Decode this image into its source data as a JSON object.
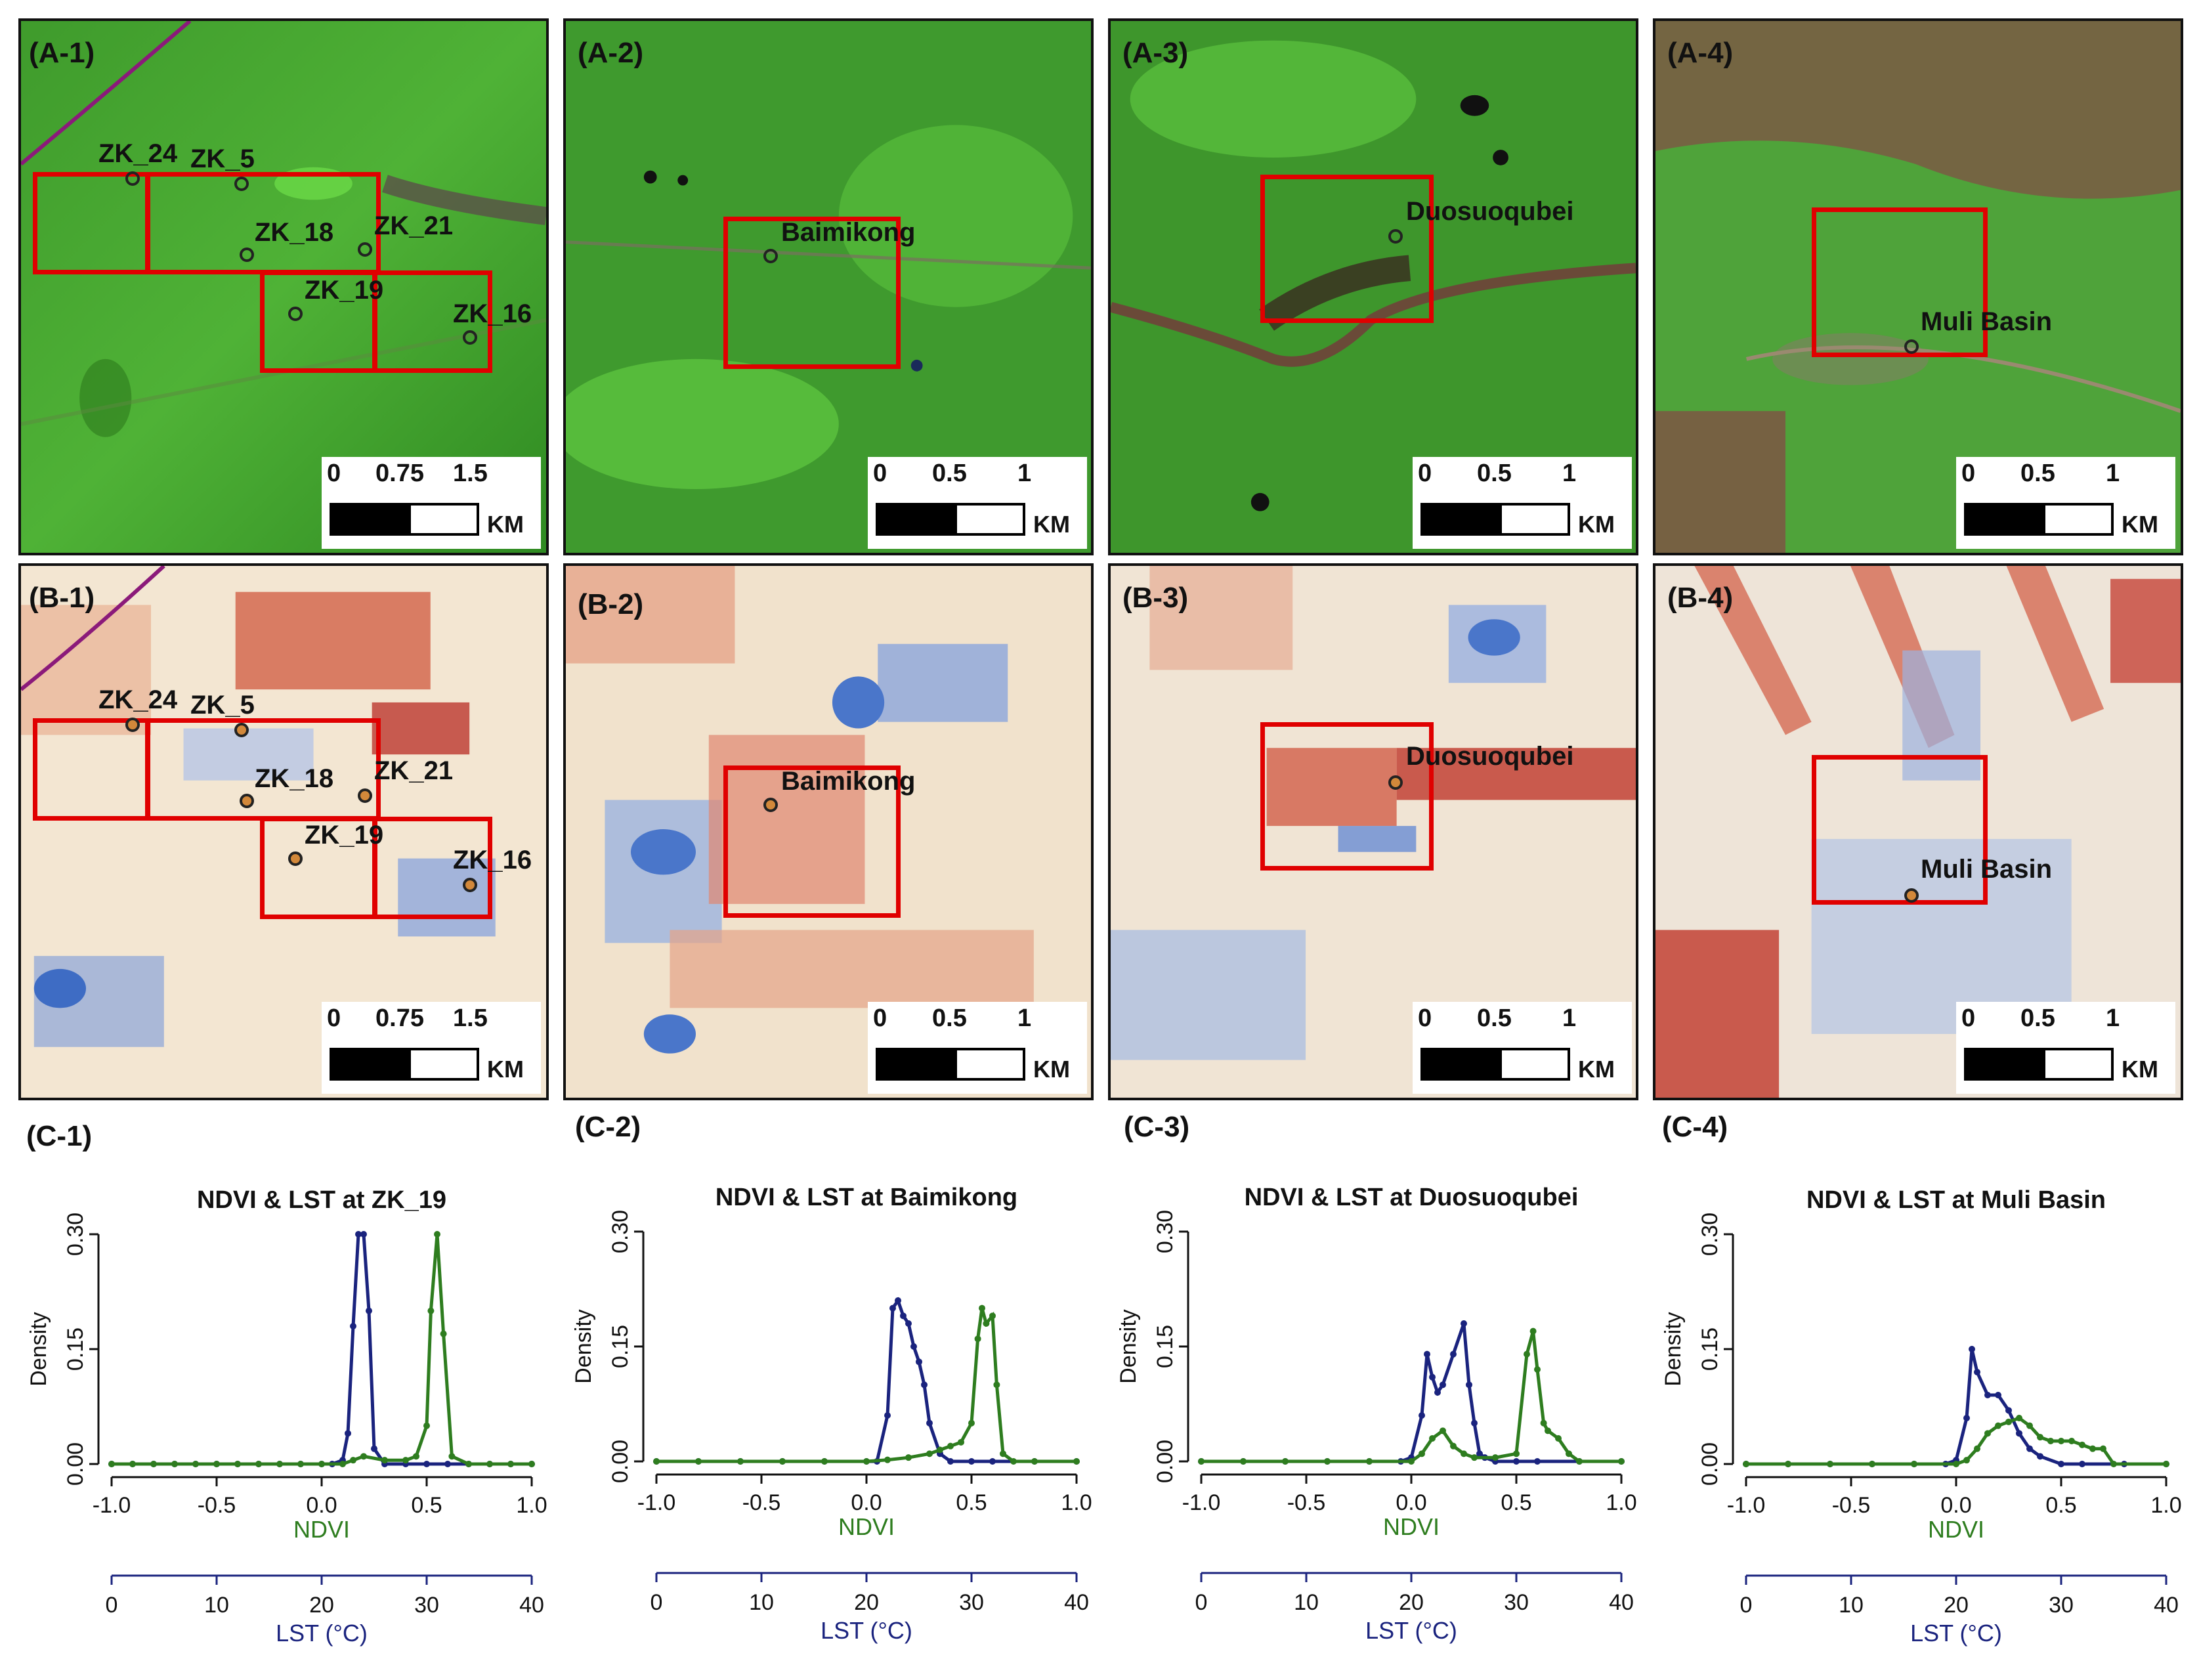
{
  "a_panels": [
    {
      "label": "(A-1)",
      "scale_ticks": [
        "0",
        "0.75",
        "1.5"
      ],
      "scale_unit": "KM",
      "sites": [
        "ZK_24",
        "ZK_5",
        "ZK_18",
        "ZK_21",
        "ZK_19",
        "ZK_16"
      ]
    },
    {
      "label": "(A-2)",
      "scale_ticks": [
        "0",
        "0.5",
        "1"
      ],
      "scale_unit": "KM",
      "sites": [
        "Baimikong"
      ]
    },
    {
      "label": "(A-3)",
      "scale_ticks": [
        "0",
        "0.5",
        "1"
      ],
      "scale_unit": "KM",
      "sites": [
        "Duosuoqubei"
      ]
    },
    {
      "label": "(A-4)",
      "scale_ticks": [
        "0",
        "0.5",
        "1"
      ],
      "scale_unit": "KM",
      "sites": [
        "Muli Basin"
      ]
    }
  ],
  "b_panels": [
    {
      "label": "(B-1)",
      "scale_ticks": [
        "0",
        "0.75",
        "1.5"
      ],
      "scale_unit": "KM",
      "sites": [
        "ZK_24",
        "ZK_5",
        "ZK_18",
        "ZK_21",
        "ZK_19",
        "ZK_16"
      ]
    },
    {
      "label": "(B-2)",
      "scale_ticks": [
        "0",
        "0.5",
        "1"
      ],
      "scale_unit": "KM",
      "sites": [
        "Baimikong"
      ]
    },
    {
      "label": "(B-3)",
      "scale_ticks": [
        "0",
        "0.5",
        "1"
      ],
      "scale_unit": "KM",
      "sites": [
        "Duosuoqubei"
      ]
    },
    {
      "label": "(B-4)",
      "scale_ticks": [
        "0",
        "0.5",
        "1"
      ],
      "scale_unit": "KM",
      "sites": [
        "Muli Basin"
      ]
    }
  ],
  "colors": {
    "ndvi": "#2e7d1f",
    "lst": "#1a237e",
    "aoi": "#e00000"
  },
  "chart_data": [
    {
      "type": "line",
      "panel_label": "(C-1)",
      "title": "NDVI & LST at ZK_19",
      "ylabel": "Density",
      "ylim": [
        0,
        0.3
      ],
      "yticks": [
        "0.00",
        "0.15",
        "0.30"
      ],
      "xlabel": "NDVI",
      "xlim": [
        -1.0,
        1.0
      ],
      "xticks": [
        "-1.0",
        "-0.5",
        "0.0",
        "0.5",
        "1.0"
      ],
      "x2label": "LST (°C)",
      "x2lim": [
        0,
        40
      ],
      "x2ticks": [
        "0",
        "10",
        "20",
        "30",
        "40"
      ],
      "series": [
        {
          "name": "LST",
          "axis": "x2",
          "x": [
            0,
            2,
            4,
            6,
            8,
            10,
            12,
            14,
            16,
            18,
            20,
            21,
            22,
            22.5,
            23,
            23.5,
            24,
            24.5,
            25,
            26,
            28,
            30,
            32,
            34,
            36,
            38,
            40
          ],
          "values": [
            0,
            0,
            0,
            0,
            0,
            0,
            0,
            0,
            0,
            0,
            0,
            0,
            0.005,
            0.04,
            0.18,
            0.3,
            0.3,
            0.2,
            0.02,
            0,
            0,
            0,
            0,
            0,
            0,
            0,
            0
          ]
        },
        {
          "name": "NDVI",
          "axis": "x",
          "x": [
            -1.0,
            -0.9,
            -0.8,
            -0.7,
            -0.6,
            -0.5,
            -0.4,
            -0.3,
            -0.2,
            -0.1,
            0.0,
            0.1,
            0.15,
            0.2,
            0.3,
            0.4,
            0.45,
            0.5,
            0.52,
            0.55,
            0.58,
            0.62,
            0.7,
            0.8,
            0.9,
            1.0
          ],
          "values": [
            0,
            0,
            0,
            0,
            0,
            0,
            0,
            0,
            0,
            0,
            0,
            0,
            0.005,
            0.01,
            0.005,
            0.005,
            0.01,
            0.05,
            0.2,
            0.3,
            0.17,
            0.01,
            0,
            0,
            0,
            0
          ]
        }
      ]
    },
    {
      "type": "line",
      "panel_label": "(C-2)",
      "title": "NDVI & LST at Baimikong",
      "ylabel": "Density",
      "ylim": [
        0,
        0.3
      ],
      "yticks": [
        "0.00",
        "0.15",
        "0.30"
      ],
      "xlabel": "NDVI",
      "xlim": [
        -1.0,
        1.0
      ],
      "xticks": [
        "-1.0",
        "-0.5",
        "0.0",
        "0.5",
        "1.0"
      ],
      "x2label": "LST (°C)",
      "x2lim": [
        0,
        40
      ],
      "x2ticks": [
        "0",
        "10",
        "20",
        "30",
        "40"
      ],
      "series": [
        {
          "name": "LST",
          "axis": "x2",
          "x": [
            0,
            4,
            8,
            12,
            16,
            20,
            21,
            22,
            22.5,
            23,
            23.5,
            24,
            24.5,
            25,
            25.5,
            26,
            27,
            28,
            30,
            32,
            36,
            40
          ],
          "values": [
            0,
            0,
            0,
            0,
            0,
            0,
            0,
            0.06,
            0.2,
            0.21,
            0.19,
            0.18,
            0.15,
            0.13,
            0.1,
            0.05,
            0.01,
            0,
            0,
            0,
            0,
            0
          ]
        },
        {
          "name": "NDVI",
          "axis": "x",
          "x": [
            -1.0,
            -0.8,
            -0.6,
            -0.4,
            -0.2,
            0.0,
            0.1,
            0.2,
            0.3,
            0.35,
            0.4,
            0.45,
            0.5,
            0.53,
            0.55,
            0.57,
            0.6,
            0.62,
            0.65,
            0.7,
            0.8,
            1.0
          ],
          "values": [
            0,
            0,
            0,
            0,
            0,
            0,
            0.002,
            0.005,
            0.01,
            0.015,
            0.02,
            0.025,
            0.05,
            0.16,
            0.2,
            0.18,
            0.19,
            0.1,
            0.01,
            0,
            0,
            0
          ]
        }
      ]
    },
    {
      "type": "line",
      "panel_label": "(C-3)",
      "title": "NDVI & LST at Duosuoqubei",
      "ylabel": "Density",
      "ylim": [
        0,
        0.3
      ],
      "yticks": [
        "0.00",
        "0.15",
        "0.30"
      ],
      "xlabel": "NDVI",
      "xlim": [
        -1.0,
        1.0
      ],
      "xticks": [
        "-1.0",
        "-0.5",
        "0.0",
        "0.5",
        "1.0"
      ],
      "x2label": "LST (°C)",
      "x2lim": [
        0,
        40
      ],
      "x2ticks": [
        "0",
        "10",
        "20",
        "30",
        "40"
      ],
      "series": [
        {
          "name": "LST",
          "axis": "x2",
          "x": [
            0,
            4,
            8,
            12,
            16,
            19,
            20,
            21,
            21.5,
            22,
            22.5,
            23,
            24,
            25,
            25.5,
            26,
            26.5,
            27,
            28,
            30,
            32,
            36,
            40
          ],
          "values": [
            0,
            0,
            0,
            0,
            0,
            0,
            0.005,
            0.06,
            0.14,
            0.11,
            0.09,
            0.1,
            0.14,
            0.18,
            0.1,
            0.05,
            0.01,
            0.005,
            0,
            0,
            0,
            0,
            0
          ]
        },
        {
          "name": "NDVI",
          "axis": "x",
          "x": [
            -1.0,
            -0.8,
            -0.6,
            -0.4,
            -0.2,
            0.0,
            0.05,
            0.1,
            0.15,
            0.2,
            0.25,
            0.3,
            0.4,
            0.5,
            0.55,
            0.58,
            0.6,
            0.63,
            0.65,
            0.7,
            0.75,
            0.8,
            1.0
          ],
          "values": [
            0,
            0,
            0,
            0,
            0,
            0,
            0.01,
            0.03,
            0.04,
            0.02,
            0.01,
            0.005,
            0.005,
            0.01,
            0.14,
            0.17,
            0.12,
            0.05,
            0.04,
            0.03,
            0.01,
            0,
            0
          ]
        }
      ]
    },
    {
      "type": "line",
      "panel_label": "(C-4)",
      "title": "NDVI & LST at Muli Basin",
      "ylabel": "Density",
      "ylim": [
        0,
        0.3
      ],
      "yticks": [
        "0.30",
        "0.15",
        "0.00"
      ],
      "xlabel": "NDVI",
      "xlim": [
        -1.0,
        1.0
      ],
      "xticks": [
        "-1.0",
        "-0.5",
        "0.0",
        "0.5",
        "1.0"
      ],
      "x2label": "LST (°C)",
      "x2lim": [
        0,
        40
      ],
      "x2ticks": [
        "0",
        "10",
        "20",
        "30",
        "40"
      ],
      "series": [
        {
          "name": "LST",
          "axis": "x2",
          "x": [
            0,
            4,
            8,
            12,
            16,
            19,
            20,
            21,
            21.5,
            22,
            23,
            24,
            25,
            26,
            27,
            28,
            30,
            32,
            36,
            40
          ],
          "values": [
            0,
            0,
            0,
            0,
            0,
            0,
            0.005,
            0.06,
            0.15,
            0.12,
            0.09,
            0.09,
            0.07,
            0.04,
            0.02,
            0.01,
            0,
            0,
            0,
            0
          ]
        },
        {
          "name": "NDVI",
          "axis": "x",
          "x": [
            -1.0,
            -0.8,
            -0.6,
            -0.4,
            -0.2,
            0.0,
            0.05,
            0.1,
            0.15,
            0.2,
            0.25,
            0.3,
            0.35,
            0.4,
            0.45,
            0.5,
            0.55,
            0.6,
            0.65,
            0.7,
            0.75,
            1.0
          ],
          "values": [
            0,
            0,
            0,
            0,
            0,
            0,
            0.005,
            0.02,
            0.04,
            0.05,
            0.055,
            0.06,
            0.05,
            0.035,
            0.03,
            0.03,
            0.03,
            0.025,
            0.02,
            0.02,
            0,
            0
          ]
        }
      ]
    }
  ]
}
